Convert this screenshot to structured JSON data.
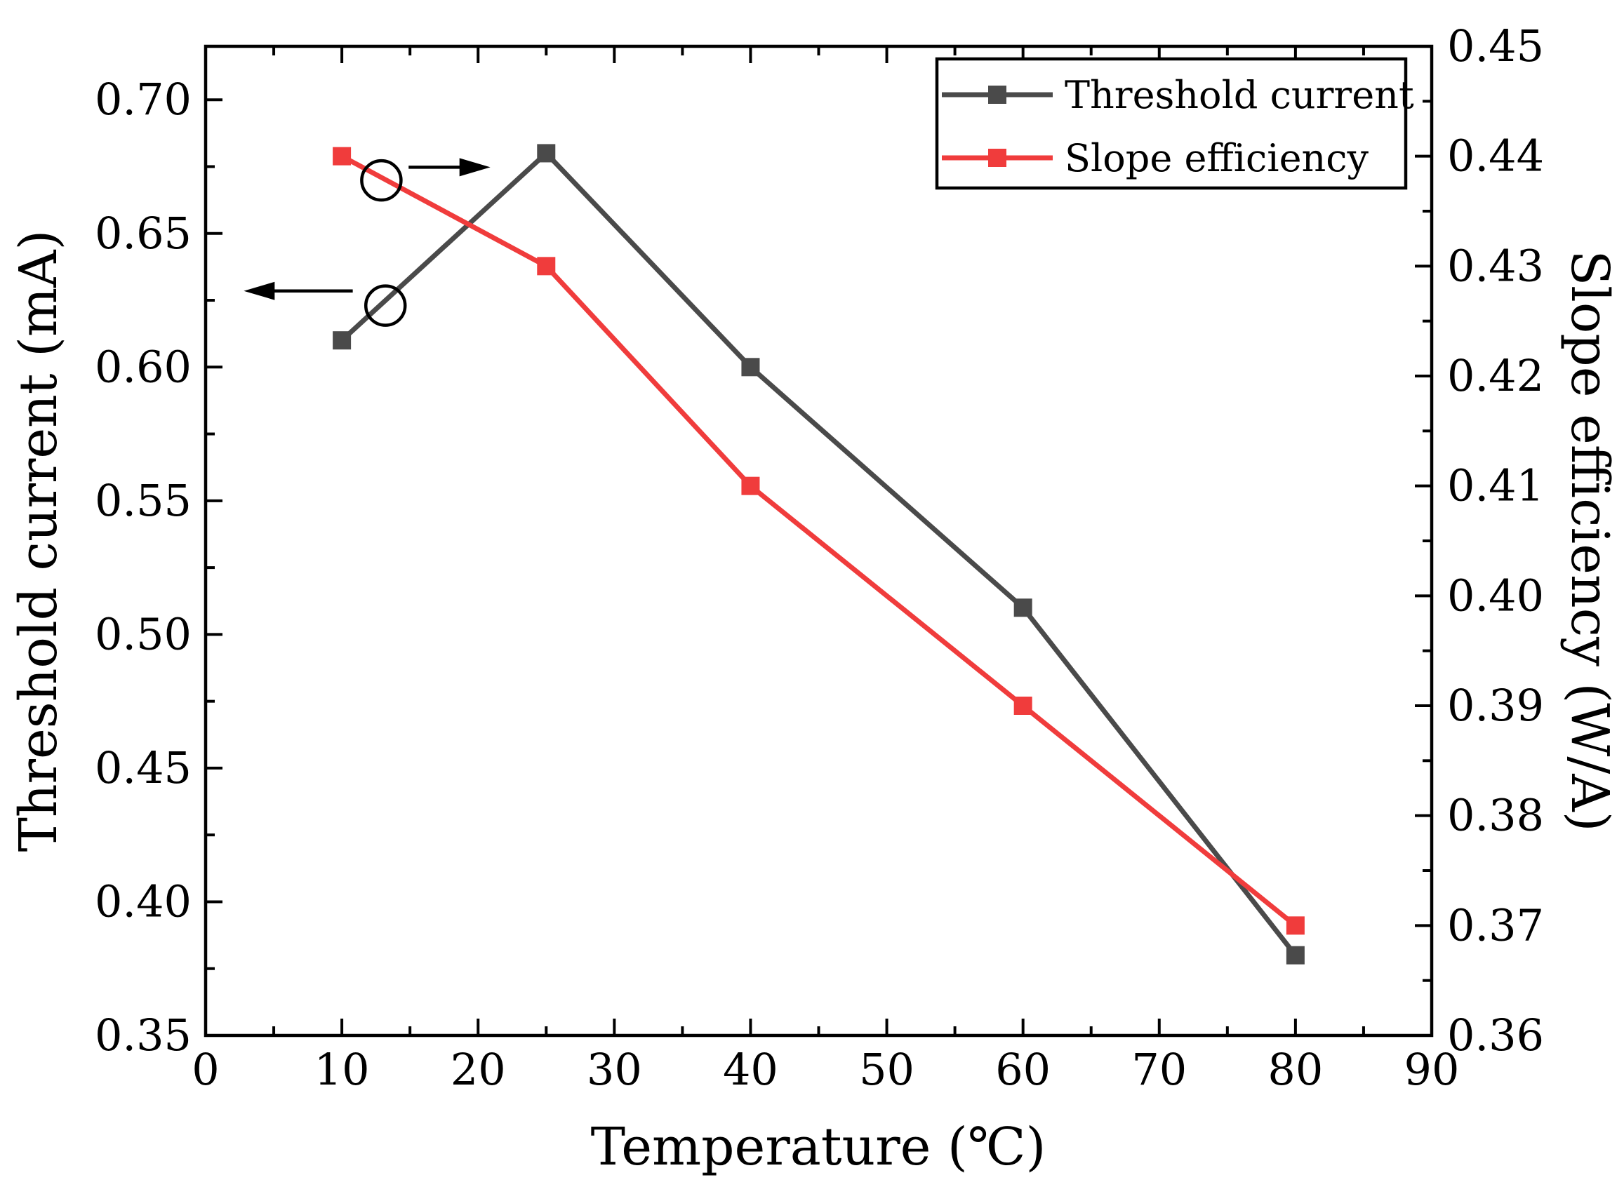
{
  "chart_data": {
    "type": "line",
    "xlabel": "Temperature (℃)",
    "ylabel_left": "Threshold current (mA)",
    "ylabel_right": "Slope efficiency (W/A)",
    "xlim": [
      0,
      90
    ],
    "ylim_left": [
      0.35,
      0.72
    ],
    "ylim_right": [
      0.36,
      0.45
    ],
    "x_ticks": [
      "0",
      "10",
      "20",
      "30",
      "40",
      "50",
      "60",
      "70",
      "80",
      "90"
    ],
    "y_left_ticks": [
      "0.35",
      "0.40",
      "0.45",
      "0.50",
      "0.55",
      "0.60",
      "0.65",
      "0.70"
    ],
    "y_right_ticks": [
      "0.36",
      "0.37",
      "0.38",
      "0.39",
      "0.40",
      "0.41",
      "0.42",
      "0.43",
      "0.44",
      "0.45"
    ],
    "legend_position": "top-right",
    "grid": false,
    "series": [
      {
        "name": "Threshold current",
        "axis": "left",
        "color": "#4a4a4a",
        "x": [
          10,
          25,
          40,
          60,
          80
        ],
        "y": [
          0.61,
          0.68,
          0.6,
          0.51,
          0.38
        ]
      },
      {
        "name": "Slope efficiency",
        "axis": "right",
        "color": "#f03c3c",
        "x": [
          10,
          25,
          40,
          60,
          80
        ],
        "y": [
          0.44,
          0.43,
          0.41,
          0.39,
          0.37
        ]
      }
    ],
    "annotations": [
      {
        "type": "circle-arrow",
        "series": "Slope efficiency",
        "direction": "right"
      },
      {
        "type": "circle-arrow",
        "series": "Threshold current",
        "direction": "left"
      }
    ]
  }
}
